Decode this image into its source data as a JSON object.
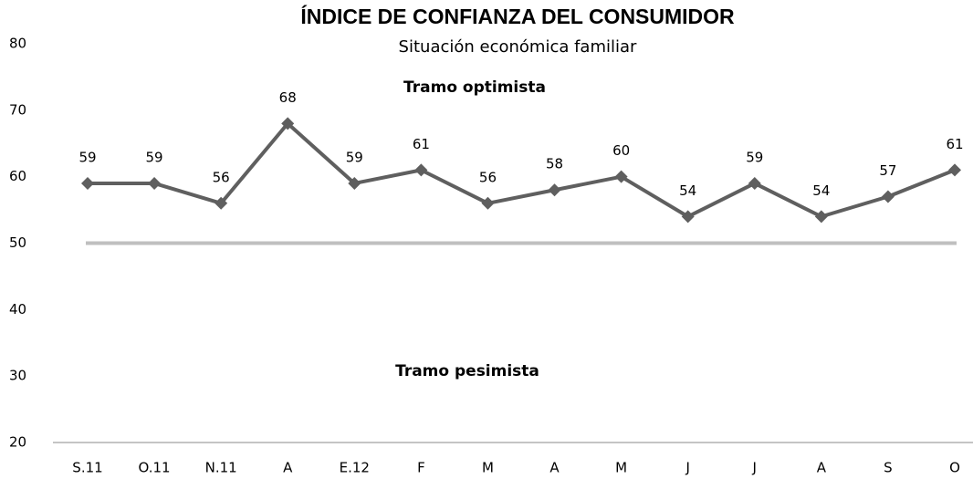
{
  "chart_data": {
    "type": "line",
    "title": "ÍNDICE DE CONFIANZA DEL CONSUMIDOR",
    "subtitle": "Situación económica familiar",
    "annotations": [
      "Tramo optimista",
      "Tramo pesimista"
    ],
    "categories": [
      "S.11",
      "O.11",
      "N.11",
      "A",
      "E.12",
      "F",
      "M",
      "A",
      "M",
      "J",
      "J",
      "A",
      "S",
      "O"
    ],
    "series": [
      {
        "name": "Situación económica familiar",
        "color": "#5f5f5f",
        "values": [
          59,
          59,
          56,
          68,
          59,
          61,
          56,
          58,
          60,
          54,
          59,
          54,
          57,
          61
        ]
      }
    ],
    "reference_line": {
      "value": 50,
      "color": "#bfbfbf"
    },
    "ylim": [
      20,
      80
    ],
    "yticks": [
      20,
      30,
      40,
      50,
      60,
      70,
      80
    ],
    "grid": false,
    "legend": false
  }
}
